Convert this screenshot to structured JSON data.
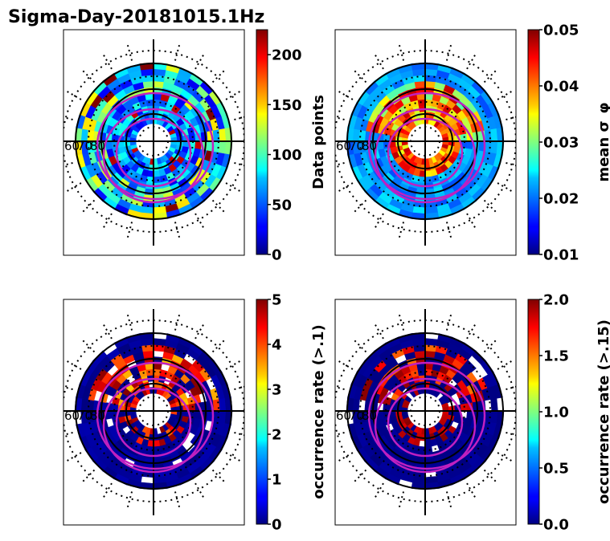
{
  "figure": {
    "title": "Sigma-Day-20181015.1Hz"
  },
  "colormap": "jet",
  "chart_data": [
    {
      "type": "heatmap",
      "projection": "polar (magnetic latitude / MLT)",
      "colorbar": {
        "label": "Data points",
        "range": [
          0,
          225
        ],
        "ticks": [
          "0",
          "50",
          "100",
          "150",
          "200"
        ]
      },
      "mlat_labels": [
        "60",
        "70",
        "80"
      ],
      "grid": "dotted latitude circles, solid 60/70/80 circles, noon-midnight and dawn-dusk axes",
      "overlay": "magenta auroral oval boundaries"
    },
    {
      "type": "heatmap",
      "projection": "polar (magnetic latitude / MLT)",
      "colorbar": {
        "label": "mean σ_φ",
        "range": [
          0.01,
          0.05
        ],
        "ticks": [
          "0.01",
          "0.02",
          "0.03",
          "0.04",
          "0.05"
        ]
      },
      "mlat_labels": [
        "60",
        "70",
        "80"
      ],
      "grid": "dotted latitude circles, solid 60/70/80 circles, noon-midnight and dawn-dusk axes",
      "overlay": "magenta auroral oval boundaries"
    },
    {
      "type": "heatmap",
      "projection": "polar (magnetic latitude / MLT)",
      "colorbar": {
        "label": "occurrence rate (>.1)",
        "range": [
          0,
          5
        ],
        "ticks": [
          "0",
          "1",
          "2",
          "3",
          "4",
          "5"
        ]
      },
      "mlat_labels": [
        "60",
        "70",
        "80"
      ],
      "grid": "dotted latitude circles, solid 60/70/80 circles, noon-midnight and dawn-dusk axes",
      "overlay": "magenta auroral oval boundaries"
    },
    {
      "type": "heatmap",
      "projection": "polar (magnetic latitude / MLT)",
      "colorbar": {
        "label": "occurrence rate (>.15)",
        "range": [
          0,
          2
        ],
        "ticks": [
          "0.0",
          "0.5",
          "1.0",
          "1.5",
          "2.0"
        ]
      },
      "mlat_labels": [
        "60",
        "70",
        "80"
      ],
      "grid": "dotted latitude circles, solid 60/70/80 circles, noon-midnight and dawn-dusk axes",
      "overlay": "magenta auroral oval boundaries"
    }
  ]
}
